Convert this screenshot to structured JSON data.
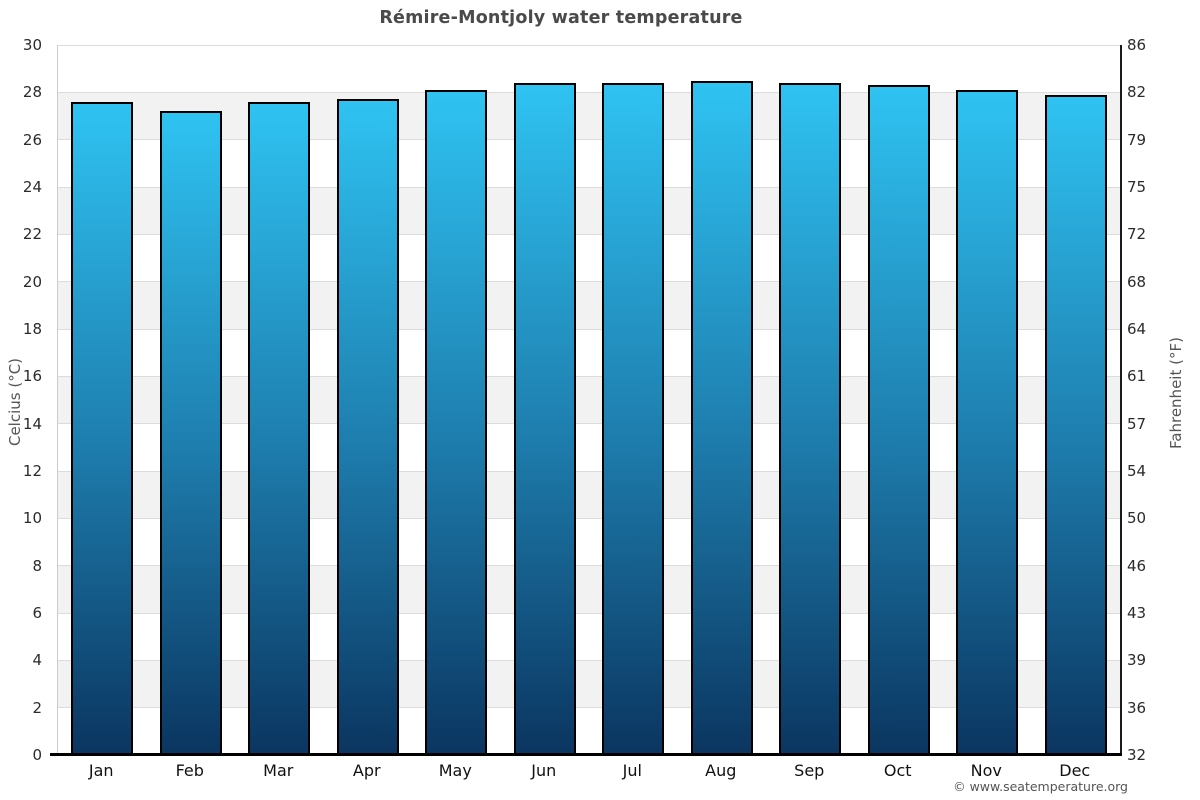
{
  "title": "Rémire-Montjoly water temperature",
  "copyright": "© www.seatemperature.org",
  "chart_data": {
    "type": "bar",
    "title": "Rémire-Montjoly water temperature",
    "categories": [
      "Jan",
      "Feb",
      "Mar",
      "Apr",
      "May",
      "Jun",
      "Jul",
      "Aug",
      "Sep",
      "Oct",
      "Nov",
      "Dec"
    ],
    "values": [
      27.6,
      27.2,
      27.6,
      27.7,
      28.1,
      28.4,
      28.4,
      28.5,
      28.4,
      28.3,
      28.1,
      27.9
    ],
    "unit": "°C",
    "ylabel_left": "Celcius (°C)",
    "ylabel_right": "Fahrenheit (°F)",
    "ylim": [
      0,
      30
    ],
    "celsius_ticks": [
      0,
      2,
      4,
      6,
      8,
      10,
      12,
      14,
      16,
      18,
      20,
      22,
      24,
      26,
      28,
      30
    ],
    "fahrenheit_tick_labels": [
      "32",
      "36",
      "39",
      "43",
      "46",
      "50",
      "54",
      "57",
      "61",
      "64",
      "68",
      "72",
      "75",
      "79",
      "82",
      "86"
    ],
    "grid": true,
    "legend": false,
    "colors": {
      "title": "#4a4a4a",
      "axis_label": "#555555",
      "tick_label": "#2b2b2b",
      "month_label": "#111111",
      "bar_top": "#2fc3f2",
      "bar_mid": "#1e7eae",
      "bar_bottom": "#0b3560",
      "bar_border": "#000000",
      "band_light": "#ffffff",
      "band_dark": "#f2f2f2",
      "gridline": "#dcdcdc",
      "copyright": "#555555"
    }
  }
}
